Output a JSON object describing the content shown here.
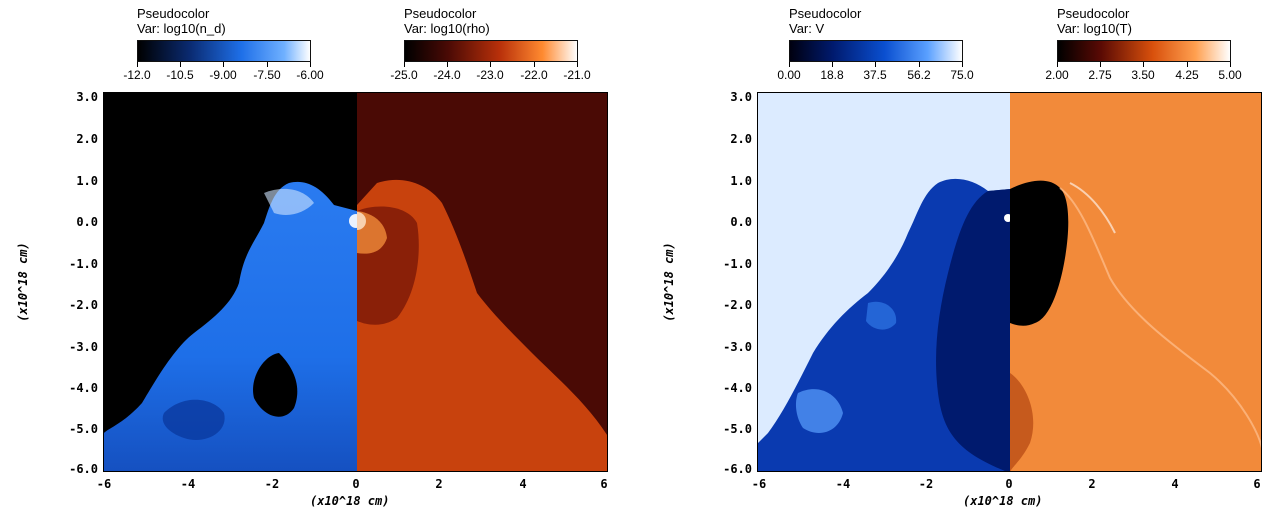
{
  "left_panel": {
    "legend_density": {
      "title": "Pseudocolor",
      "var": "Var: log10(n_d)",
      "ticks": [
        "-12.0",
        "-10.5",
        "-9.00",
        "-7.50",
        "-6.00"
      ]
    },
    "legend_rho": {
      "title": "Pseudocolor",
      "var": "Var: log10(rho)",
      "ticks": [
        "-25.0",
        "-24.0",
        "-23.0",
        "-22.0",
        "-21.0"
      ]
    },
    "y_ticks": [
      "3.0",
      "2.0",
      "1.0",
      "0.0",
      "-1.0",
      "-2.0",
      "-3.0",
      "-4.0",
      "-5.0",
      "-6.0"
    ],
    "x_ticks": [
      "-6",
      "-4",
      "-2",
      "0",
      "2",
      "4",
      "6"
    ],
    "x_unit": "(x10^18 cm)",
    "y_unit": "(x10^18 cm)"
  },
  "right_panel": {
    "legend_velocity": {
      "title": "Pseudocolor",
      "var": "Var: V",
      "ticks": [
        "0.00",
        "18.8",
        "37.5",
        "56.2",
        "75.0"
      ]
    },
    "legend_temp": {
      "title": "Pseudocolor",
      "var": "Var: log10(T)",
      "ticks": [
        "2.00",
        "2.75",
        "3.50",
        "4.25",
        "5.00"
      ]
    },
    "y_ticks": [
      "3.0",
      "2.0",
      "1.0",
      "0.0",
      "-1.0",
      "-2.0",
      "-3.0",
      "-4.0",
      "-5.0",
      "-6.0"
    ],
    "x_ticks": [
      "-6",
      "-4",
      "-2",
      "0",
      "2",
      "4",
      "6"
    ],
    "x_unit": "(x10^18 cm)",
    "y_unit": "(x10^18 cm)"
  },
  "colors": {
    "blue_map": [
      "#000000",
      "#0a2a70",
      "#1e6fe8",
      "#6fb0ff",
      "#ffffff"
    ],
    "orange_map": [
      "#000000",
      "#4a0a05",
      "#b8300a",
      "#ff8a30",
      "#ffffff"
    ],
    "velocity_map": [
      "#000010",
      "#001a6e",
      "#0a4fd0",
      "#5aa0ff",
      "#ffffff"
    ],
    "temp_map": [
      "#000000",
      "#5a0a04",
      "#d8500c",
      "#ffa050",
      "#ffffff"
    ]
  }
}
